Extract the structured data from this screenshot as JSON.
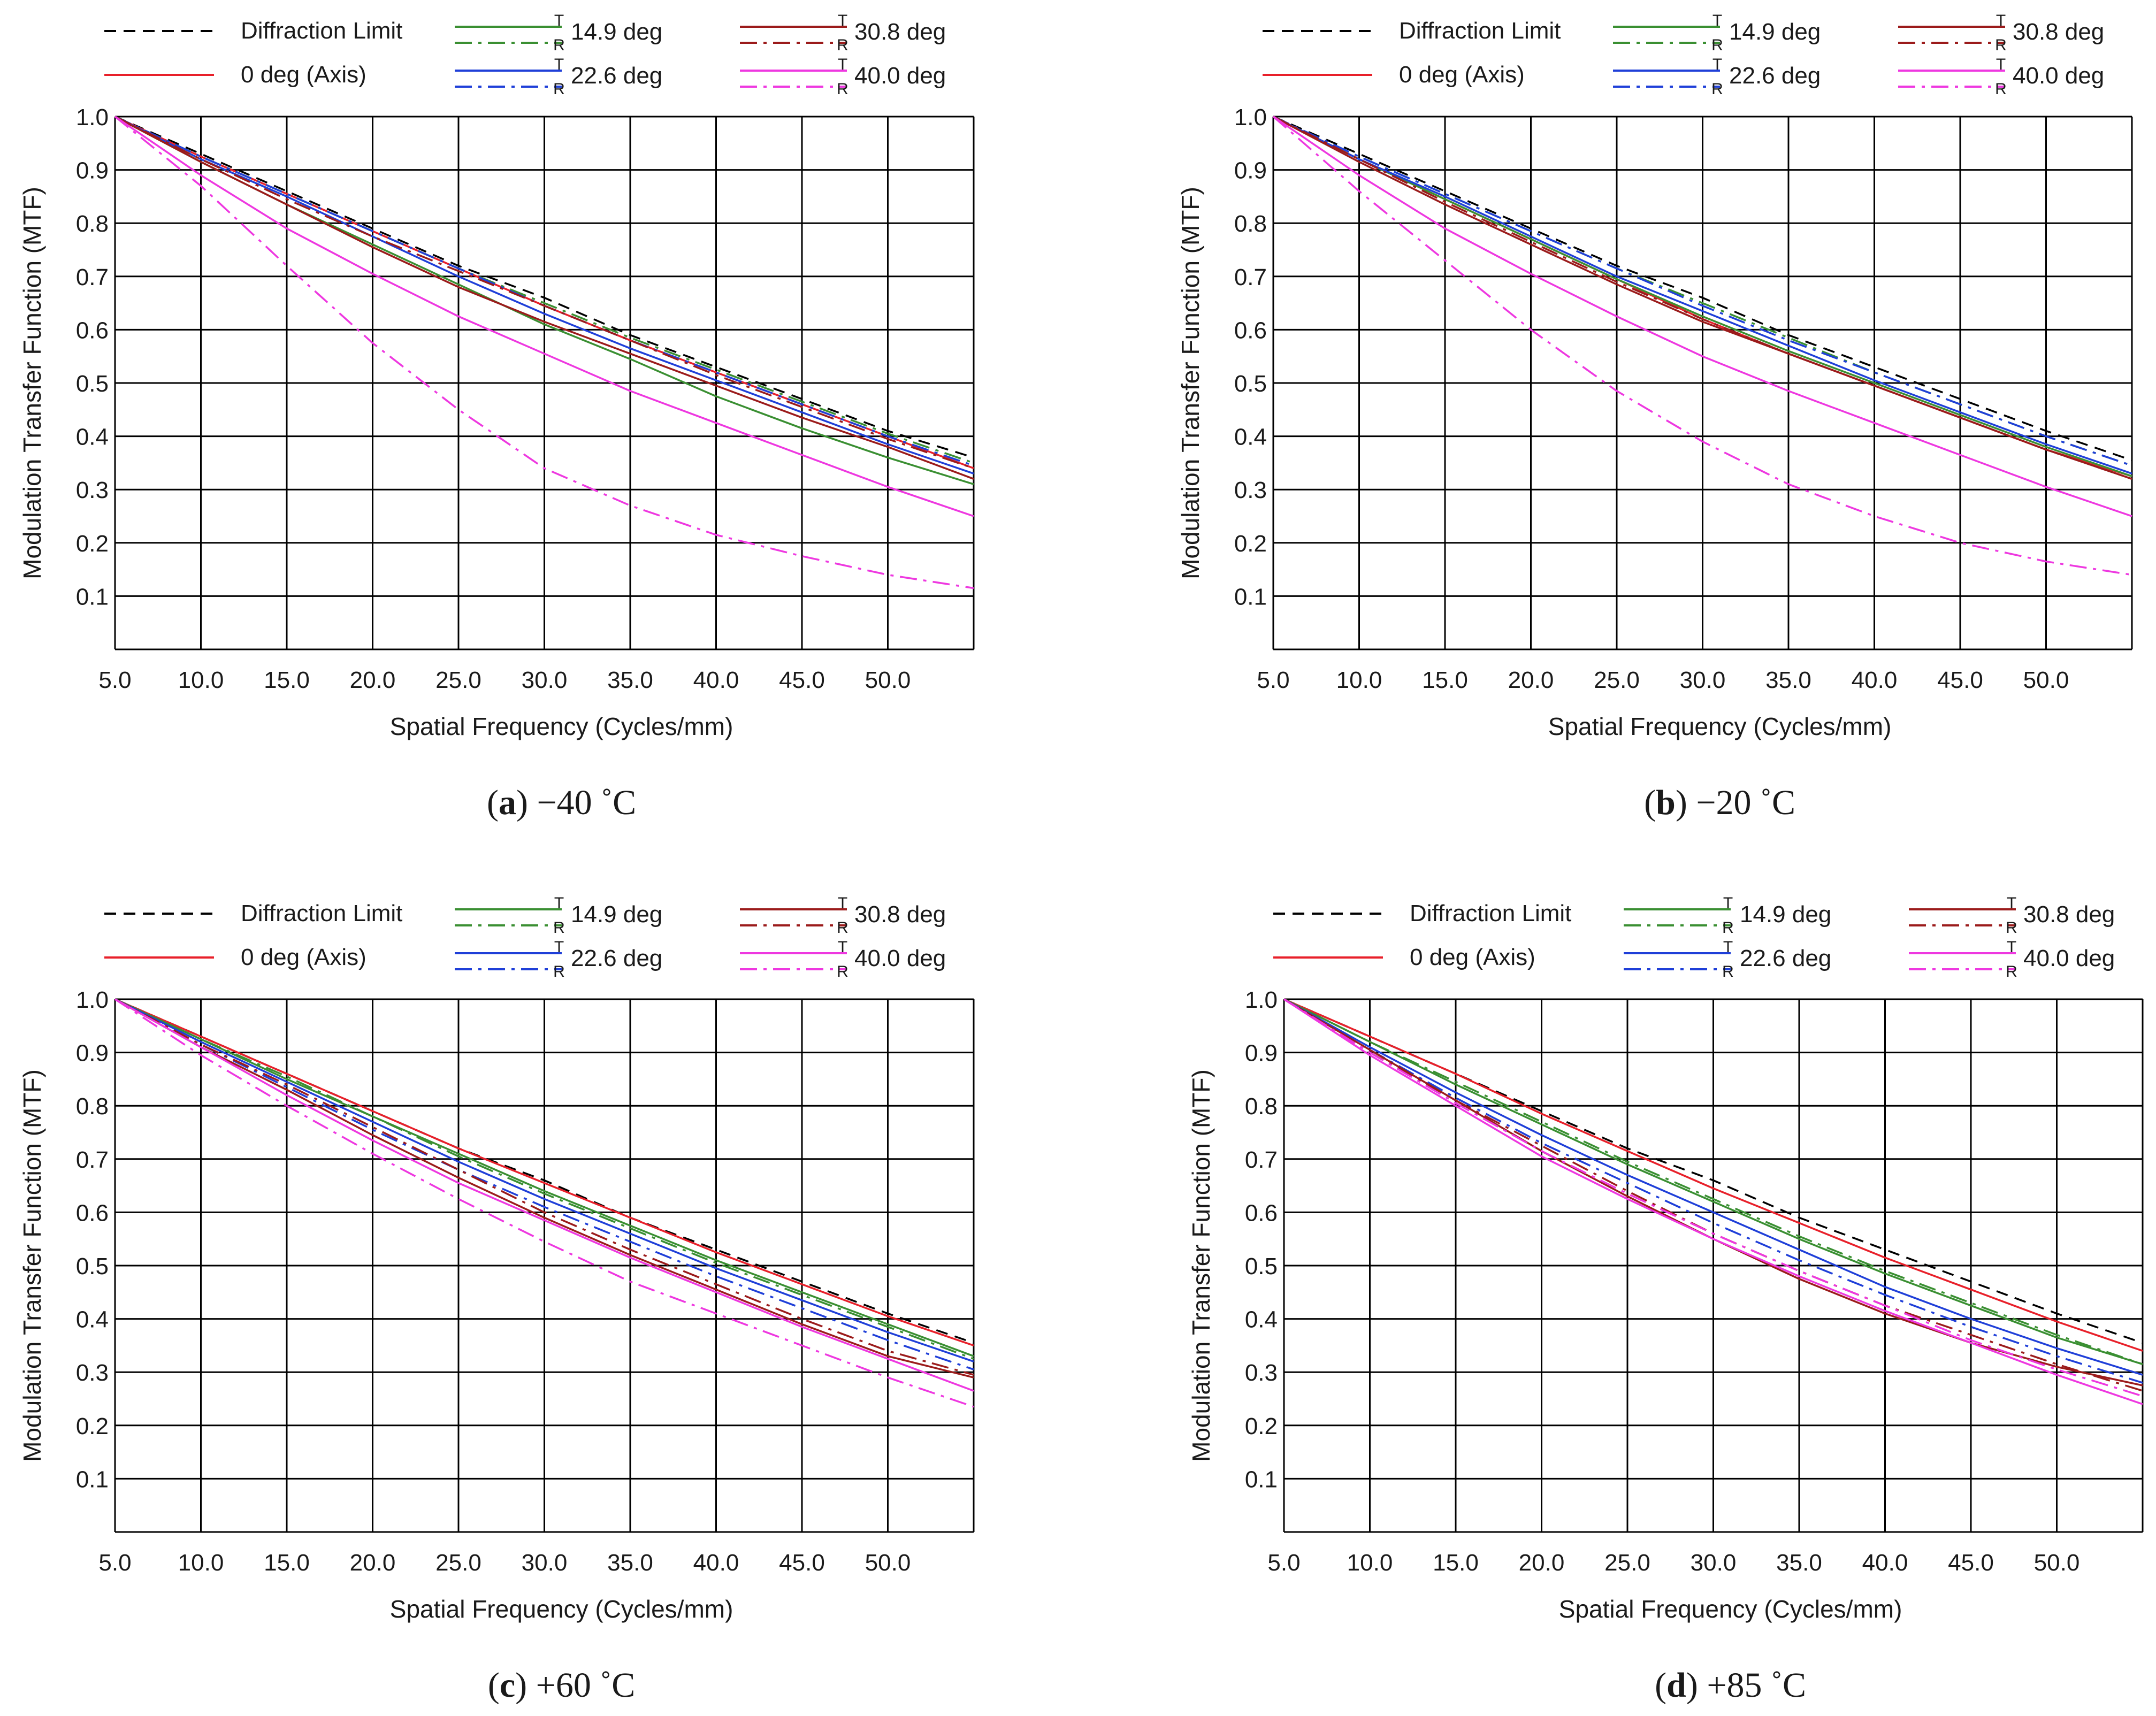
{
  "colors": {
    "diffraction": "#000000",
    "axis": "#e8202a",
    "deg14": "#3a8f32",
    "deg22": "#1f3fd8",
    "deg30": "#9b1b1b",
    "deg40": "#ee38e0",
    "grid": "#000000"
  },
  "legend": [
    {
      "key": "diff",
      "label": "Diffraction Limit",
      "color_key": "diffraction",
      "style": "dashed"
    },
    {
      "key": "axis",
      "label": "0 deg (Axis)",
      "color_key": "axis",
      "style": "solid"
    },
    {
      "key": "d14",
      "label": "14.9 deg",
      "color_key": "deg14",
      "style": "TR"
    },
    {
      "key": "d22",
      "label": "22.6 deg",
      "color_key": "deg22",
      "style": "TR"
    },
    {
      "key": "d30",
      "label": "30.8 deg",
      "color_key": "deg30",
      "style": "TR"
    },
    {
      "key": "d40",
      "label": "40.0 deg",
      "color_key": "deg40",
      "style": "TR"
    }
  ],
  "tr_letters": {
    "t": "T",
    "r": "R"
  },
  "chart_data": [
    {
      "type": "line",
      "letter": "a",
      "title": "−40 ˚C",
      "xlabel": "Spatial Frequency (Cycles/mm)",
      "ylabel": "Modulation Transfer Function (MTF)",
      "xlim": [
        5,
        55
      ],
      "ylim": [
        0,
        1
      ],
      "xticks": [
        "5.0",
        "10.0",
        "15.0",
        "20.0",
        "25.0",
        "30.0",
        "35.0",
        "40.0",
        "45.0",
        "50.0"
      ],
      "yticks": [
        "0.1",
        "0.2",
        "0.3",
        "0.4",
        "0.5",
        "0.6",
        "0.7",
        "0.8",
        "0.9",
        "1.0"
      ],
      "grid": true,
      "x": [
        5,
        10,
        15,
        20,
        25,
        30,
        35,
        40,
        45,
        50,
        55
      ],
      "series": [
        {
          "name": "Diffraction Limit",
          "color_key": "diffraction",
          "dash": "dashed",
          "values": [
            1.0,
            0.93,
            0.86,
            0.79,
            0.72,
            0.66,
            0.59,
            0.53,
            0.47,
            0.41,
            0.36
          ]
        },
        {
          "name": "0 deg (Axis)",
          "color_key": "axis",
          "dash": "solid",
          "values": [
            1.0,
            0.925,
            0.855,
            0.785,
            0.715,
            0.645,
            0.58,
            0.52,
            0.46,
            0.4,
            0.34
          ]
        },
        {
          "name": "T 14.9 deg",
          "color_key": "deg14",
          "dash": "solid",
          "values": [
            1.0,
            0.915,
            0.835,
            0.76,
            0.685,
            0.61,
            0.545,
            0.475,
            0.415,
            0.36,
            0.31
          ]
        },
        {
          "name": "R 14.9 deg",
          "color_key": "deg14",
          "dash": "dashdot",
          "values": [
            1.0,
            0.925,
            0.855,
            0.785,
            0.715,
            0.65,
            0.585,
            0.525,
            0.465,
            0.405,
            0.35
          ]
        },
        {
          "name": "T 22.6 deg",
          "color_key": "deg22",
          "dash": "solid",
          "values": [
            1.0,
            0.92,
            0.85,
            0.775,
            0.7,
            0.63,
            0.565,
            0.505,
            0.445,
            0.385,
            0.33
          ]
        },
        {
          "name": "R 22.6 deg",
          "color_key": "deg22",
          "dash": "dashdot",
          "values": [
            1.0,
            0.925,
            0.855,
            0.785,
            0.715,
            0.645,
            0.58,
            0.52,
            0.46,
            0.4,
            0.345
          ]
        },
        {
          "name": "T 30.8 deg",
          "color_key": "deg30",
          "dash": "solid",
          "values": [
            1.0,
            0.915,
            0.835,
            0.755,
            0.68,
            0.615,
            0.555,
            0.495,
            0.435,
            0.38,
            0.32
          ]
        },
        {
          "name": "R 30.8 deg",
          "color_key": "deg30",
          "dash": "dashdot",
          "values": [
            1.0,
            0.92,
            0.845,
            0.775,
            0.71,
            0.645,
            0.58,
            0.515,
            0.455,
            0.395,
            0.34
          ]
        },
        {
          "name": "T 40.0 deg",
          "color_key": "deg40",
          "dash": "solid",
          "values": [
            1.0,
            0.89,
            0.79,
            0.705,
            0.625,
            0.555,
            0.485,
            0.425,
            0.365,
            0.305,
            0.25
          ]
        },
        {
          "name": "R 40.0 deg",
          "color_key": "deg40",
          "dash": "dashdot",
          "values": [
            1.0,
            0.87,
            0.72,
            0.575,
            0.45,
            0.34,
            0.27,
            0.215,
            0.175,
            0.14,
            0.115
          ]
        }
      ]
    },
    {
      "type": "line",
      "letter": "b",
      "title": "−20 ˚C",
      "xlabel": "Spatial Frequency (Cycles/mm)",
      "ylabel": "Modulation Transfer Function (MTF)",
      "xlim": [
        5,
        55
      ],
      "ylim": [
        0,
        1
      ],
      "xticks": [
        "5.0",
        "10.0",
        "15.0",
        "20.0",
        "25.0",
        "30.0",
        "35.0",
        "40.0",
        "45.0",
        "50.0"
      ],
      "yticks": [
        "0.1",
        "0.2",
        "0.3",
        "0.4",
        "0.5",
        "0.6",
        "0.7",
        "0.8",
        "0.9",
        "1.0"
      ],
      "grid": true,
      "x": [
        5,
        10,
        15,
        20,
        25,
        30,
        35,
        40,
        45,
        50,
        55
      ],
      "series": [
        {
          "name": "Diffraction Limit",
          "color_key": "diffraction",
          "dash": "dashed",
          "values": [
            1.0,
            0.93,
            0.86,
            0.79,
            0.72,
            0.66,
            0.59,
            0.53,
            0.47,
            0.41,
            0.355
          ]
        },
        {
          "name": "0 deg (Axis)",
          "color_key": "axis",
          "dash": "solid",
          "values": [
            1.0,
            0.92,
            0.845,
            0.77,
            0.695,
            0.62,
            0.555,
            0.495,
            0.435,
            0.375,
            0.325
          ]
        },
        {
          "name": "T 14.9 deg",
          "color_key": "deg14",
          "dash": "solid",
          "values": [
            1.0,
            0.92,
            0.845,
            0.77,
            0.695,
            0.625,
            0.56,
            0.5,
            0.44,
            0.38,
            0.325
          ]
        },
        {
          "name": "R 14.9 deg",
          "color_key": "deg14",
          "dash": "dashdot",
          "values": [
            1.0,
            0.925,
            0.855,
            0.785,
            0.715,
            0.65,
            0.585,
            0.52,
            0.46,
            0.4,
            0.345
          ]
        },
        {
          "name": "T 22.6 deg",
          "color_key": "deg22",
          "dash": "solid",
          "values": [
            1.0,
            0.92,
            0.85,
            0.775,
            0.7,
            0.635,
            0.57,
            0.505,
            0.445,
            0.385,
            0.33
          ]
        },
        {
          "name": "R 22.6 deg",
          "color_key": "deg22",
          "dash": "dashdot",
          "values": [
            1.0,
            0.925,
            0.855,
            0.785,
            0.715,
            0.645,
            0.58,
            0.52,
            0.46,
            0.4,
            0.345
          ]
        },
        {
          "name": "T 30.8 deg",
          "color_key": "deg30",
          "dash": "solid",
          "values": [
            1.0,
            0.915,
            0.835,
            0.76,
            0.685,
            0.615,
            0.555,
            0.495,
            0.435,
            0.375,
            0.32
          ]
        },
        {
          "name": "R 30.8 deg",
          "color_key": "deg30",
          "dash": "dashdot",
          "values": [
            1.0,
            0.92,
            0.84,
            0.765,
            0.69,
            0.62,
            0.555,
            0.495,
            0.435,
            0.375,
            0.32
          ]
        },
        {
          "name": "T 40.0 deg",
          "color_key": "deg40",
          "dash": "solid",
          "values": [
            1.0,
            0.89,
            0.79,
            0.705,
            0.625,
            0.55,
            0.485,
            0.425,
            0.365,
            0.305,
            0.25
          ]
        },
        {
          "name": "R 40.0 deg",
          "color_key": "deg40",
          "dash": "dashdot",
          "values": [
            1.0,
            0.86,
            0.73,
            0.6,
            0.485,
            0.39,
            0.31,
            0.25,
            0.2,
            0.165,
            0.14
          ]
        }
      ]
    },
    {
      "type": "line",
      "letter": "c",
      "title": "+60 ˚C",
      "xlabel": "Spatial Frequency (Cycles/mm)",
      "ylabel": "Modulation Transfer Function (MTF)",
      "xlim": [
        5,
        55
      ],
      "ylim": [
        0,
        1
      ],
      "xticks": [
        "5.0",
        "10.0",
        "15.0",
        "20.0",
        "25.0",
        "30.0",
        "35.0",
        "40.0",
        "45.0",
        "50.0"
      ],
      "yticks": [
        "0.1",
        "0.2",
        "0.3",
        "0.4",
        "0.5",
        "0.6",
        "0.7",
        "0.8",
        "0.9",
        "1.0"
      ],
      "grid": true,
      "x": [
        5,
        10,
        15,
        20,
        25,
        30,
        35,
        40,
        45,
        50,
        55
      ],
      "series": [
        {
          "name": "Diffraction Limit",
          "color_key": "diffraction",
          "dash": "dashed",
          "values": [
            1.0,
            0.93,
            0.86,
            0.79,
            0.72,
            0.66,
            0.59,
            0.53,
            0.47,
            0.41,
            0.355
          ]
        },
        {
          "name": "0 deg (Axis)",
          "color_key": "axis",
          "dash": "solid",
          "values": [
            1.0,
            0.93,
            0.86,
            0.79,
            0.72,
            0.655,
            0.59,
            0.525,
            0.465,
            0.405,
            0.35
          ]
        },
        {
          "name": "T 14.9 deg",
          "color_key": "deg14",
          "dash": "solid",
          "values": [
            1.0,
            0.925,
            0.85,
            0.78,
            0.71,
            0.64,
            0.575,
            0.51,
            0.45,
            0.39,
            0.33
          ]
        },
        {
          "name": "R 14.9 deg",
          "color_key": "deg14",
          "dash": "dashdot",
          "values": [
            1.0,
            0.925,
            0.855,
            0.78,
            0.705,
            0.635,
            0.57,
            0.505,
            0.445,
            0.385,
            0.325
          ]
        },
        {
          "name": "T 22.6 deg",
          "color_key": "deg22",
          "dash": "solid",
          "values": [
            1.0,
            0.92,
            0.845,
            0.77,
            0.695,
            0.625,
            0.56,
            0.495,
            0.435,
            0.375,
            0.32
          ]
        },
        {
          "name": "R 22.6 deg",
          "color_key": "deg22",
          "dash": "dashdot",
          "values": [
            1.0,
            0.915,
            0.835,
            0.755,
            0.68,
            0.61,
            0.545,
            0.48,
            0.42,
            0.36,
            0.305
          ]
        },
        {
          "name": "T 30.8 deg",
          "color_key": "deg30",
          "dash": "solid",
          "values": [
            1.0,
            0.91,
            0.83,
            0.745,
            0.665,
            0.59,
            0.52,
            0.455,
            0.39,
            0.33,
            0.29
          ]
        },
        {
          "name": "R 30.8 deg",
          "color_key": "deg30",
          "dash": "dashdot",
          "values": [
            1.0,
            0.915,
            0.84,
            0.76,
            0.68,
            0.6,
            0.53,
            0.465,
            0.4,
            0.34,
            0.295
          ]
        },
        {
          "name": "T 40.0 deg",
          "color_key": "deg40",
          "dash": "solid",
          "values": [
            1.0,
            0.91,
            0.82,
            0.735,
            0.655,
            0.585,
            0.515,
            0.45,
            0.385,
            0.325,
            0.265
          ]
        },
        {
          "name": "R 40.0 deg",
          "color_key": "deg40",
          "dash": "dashdot",
          "values": [
            1.0,
            0.895,
            0.8,
            0.71,
            0.625,
            0.545,
            0.47,
            0.41,
            0.35,
            0.29,
            0.235
          ]
        }
      ]
    },
    {
      "type": "line",
      "letter": "d",
      "title": "+85 ˚C",
      "xlabel": "Spatial Frequency (Cycles/mm)",
      "ylabel": "Modulation Transfer Function (MTF)",
      "xlim": [
        5,
        55
      ],
      "ylim": [
        0,
        1
      ],
      "xticks": [
        "5.0",
        "10.0",
        "15.0",
        "20.0",
        "25.0",
        "30.0",
        "35.0",
        "40.0",
        "45.0",
        "50.0"
      ],
      "yticks": [
        "0.1",
        "0.2",
        "0.3",
        "0.4",
        "0.5",
        "0.6",
        "0.7",
        "0.8",
        "0.9",
        "1.0"
      ],
      "grid": true,
      "x": [
        5,
        10,
        15,
        20,
        25,
        30,
        35,
        40,
        45,
        50,
        55
      ],
      "series": [
        {
          "name": "Diffraction Limit",
          "color_key": "diffraction",
          "dash": "dashed",
          "values": [
            1.0,
            0.93,
            0.86,
            0.79,
            0.72,
            0.66,
            0.59,
            0.53,
            0.47,
            0.41,
            0.355
          ]
        },
        {
          "name": "0 deg (Axis)",
          "color_key": "axis",
          "dash": "solid",
          "values": [
            1.0,
            0.93,
            0.86,
            0.785,
            0.715,
            0.645,
            0.58,
            0.515,
            0.455,
            0.395,
            0.34
          ]
        },
        {
          "name": "T 14.9 deg",
          "color_key": "deg14",
          "dash": "solid",
          "values": [
            1.0,
            0.92,
            0.84,
            0.765,
            0.69,
            0.62,
            0.55,
            0.485,
            0.425,
            0.365,
            0.315
          ]
        },
        {
          "name": "R 14.9 deg",
          "color_key": "deg14",
          "dash": "dashdot",
          "values": [
            1.0,
            0.92,
            0.845,
            0.77,
            0.695,
            0.625,
            0.555,
            0.49,
            0.43,
            0.37,
            0.315
          ]
        },
        {
          "name": "T 22.6 deg",
          "color_key": "deg22",
          "dash": "solid",
          "values": [
            1.0,
            0.91,
            0.825,
            0.745,
            0.67,
            0.6,
            0.53,
            0.46,
            0.4,
            0.345,
            0.295
          ]
        },
        {
          "name": "R 22.6 deg",
          "color_key": "deg22",
          "dash": "dashdot",
          "values": [
            1.0,
            0.905,
            0.815,
            0.73,
            0.655,
            0.58,
            0.51,
            0.445,
            0.385,
            0.33,
            0.28
          ]
        },
        {
          "name": "T 30.8 deg",
          "color_key": "deg30",
          "dash": "solid",
          "values": [
            1.0,
            0.905,
            0.81,
            0.715,
            0.63,
            0.55,
            0.475,
            0.41,
            0.355,
            0.31,
            0.275
          ]
        },
        {
          "name": "R 30.8 deg",
          "color_key": "deg30",
          "dash": "dashdot",
          "values": [
            1.0,
            0.9,
            0.81,
            0.725,
            0.64,
            0.56,
            0.49,
            0.425,
            0.37,
            0.315,
            0.265
          ]
        },
        {
          "name": "T 40.0 deg",
          "color_key": "deg40",
          "dash": "solid",
          "values": [
            1.0,
            0.895,
            0.8,
            0.705,
            0.625,
            0.55,
            0.48,
            0.415,
            0.355,
            0.295,
            0.24
          ]
        },
        {
          "name": "R 40.0 deg",
          "color_key": "deg40",
          "dash": "dashdot",
          "values": [
            1.0,
            0.9,
            0.805,
            0.715,
            0.635,
            0.56,
            0.49,
            0.425,
            0.36,
            0.305,
            0.255
          ]
        }
      ]
    }
  ]
}
